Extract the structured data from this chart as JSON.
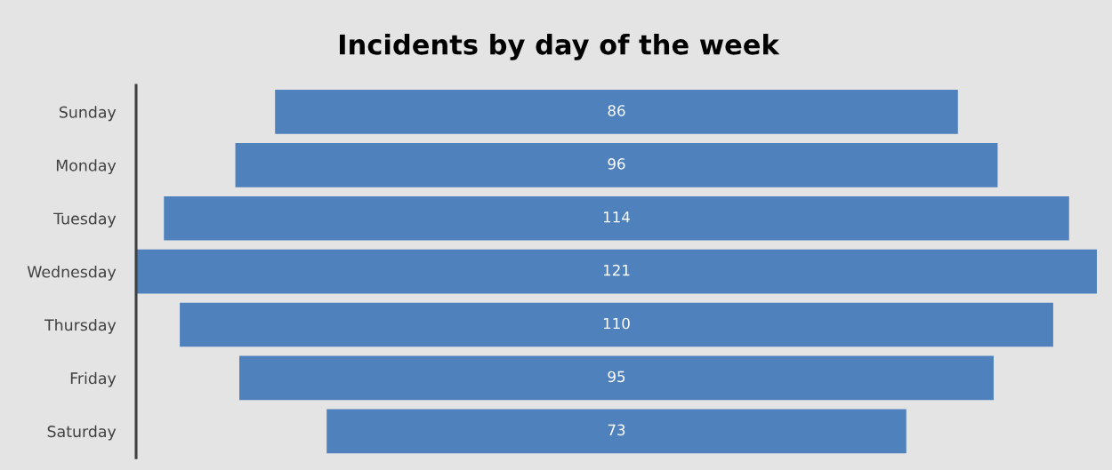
{
  "chart_data": {
    "type": "other",
    "title": "Incidents by day of the week",
    "categories": [
      "Sunday",
      "Monday",
      "Tuesday",
      "Wednesday",
      "Thursday",
      "Friday",
      "Saturday"
    ],
    "values": [
      86,
      96,
      114,
      121,
      110,
      95,
      73
    ],
    "color": "#4f81bd",
    "data_labels": true
  }
}
